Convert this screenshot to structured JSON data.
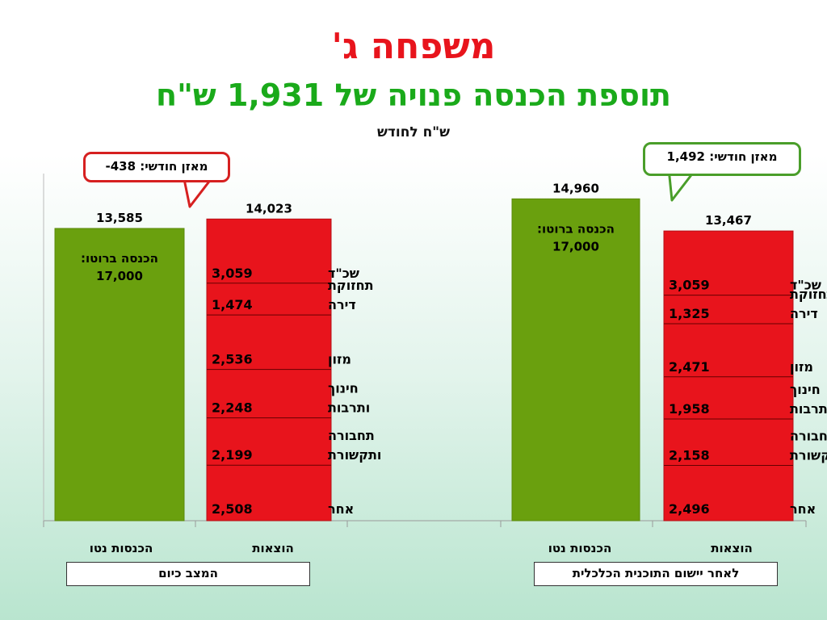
{
  "header": {
    "title": "משפחה ג'",
    "subtitle": "תוספת הכנסה פנויה של 1,931 ש\"ח",
    "unit_label": "ש\"ח לחודש"
  },
  "groups": [
    {
      "label": "המצב כיום",
      "balance": "מאזן חודשי: 438-"
    },
    {
      "label": "לאחר יישום התוכנית הכלכלית",
      "balance": "מאזן חודשי: 1,492"
    }
  ],
  "colors": {
    "income": "#6aa00e",
    "expenses": "#e8141c",
    "title": "#e8141c",
    "subtitle": "#1aaa1a"
  },
  "chart_data": {
    "type": "bar",
    "categories": [
      "הכנסות נטו",
      "הוצאות",
      "הכנסות נטו",
      "הוצאות"
    ],
    "ylim": [
      0,
      17000
    ],
    "bars": [
      {
        "group": 0,
        "kind": "income",
        "total_label": "13,585",
        "value": 13585,
        "inner_label": "הכנסה ברוטו:",
        "inner_value": "17,000"
      },
      {
        "group": 0,
        "kind": "expenses",
        "total_label": "14,023",
        "value": 14023,
        "segments": [
          {
            "name": "שכ\"ד",
            "label": "3,059",
            "value": 3059
          },
          {
            "name": "תחזוקת דירה",
            "label": "1,474",
            "value": 1474
          },
          {
            "name": "מזון",
            "label": "2,536",
            "value": 2536
          },
          {
            "name": "חינוך ותרבות",
            "label": "2,248",
            "value": 2248
          },
          {
            "name": "תחבורה ותקשורת",
            "label": "2,199",
            "value": 2199
          },
          {
            "name": "אחר",
            "label": "2,508",
            "value": 2508
          }
        ]
      },
      {
        "group": 1,
        "kind": "income",
        "total_label": "14,960",
        "value": 14960,
        "inner_label": "הכנסה ברוטו:",
        "inner_value": "17,000"
      },
      {
        "group": 1,
        "kind": "expenses",
        "total_label": "13,467",
        "value": 13467,
        "segments": [
          {
            "name": "שכ\"ד",
            "label": "3,059",
            "value": 3059
          },
          {
            "name": "תחזוקת דירה",
            "label": "1,325",
            "value": 1325
          },
          {
            "name": "מזון",
            "label": "2,471",
            "value": 2471
          },
          {
            "name": "חינוך ותרבות",
            "label": "1,958",
            "value": 1958
          },
          {
            "name": "תחבורה ותקשורת",
            "label": "2,158",
            "value": 2158
          },
          {
            "name": "אחר",
            "label": "2,496",
            "value": 2496
          }
        ]
      }
    ]
  }
}
